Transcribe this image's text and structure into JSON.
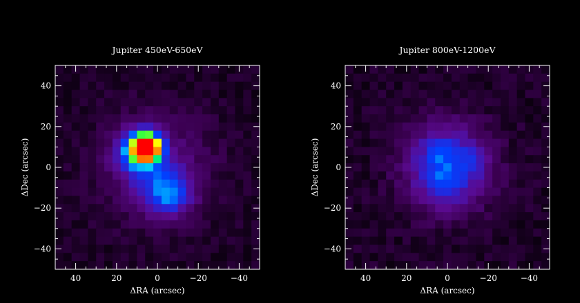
{
  "chart_data": [
    {
      "type": "heatmap",
      "title": "Jupiter 450eV-650eV",
      "xlabel": "ΔRA (arcsec)",
      "ylabel": "ΔDec (arcsec)",
      "xlim": [
        50,
        -50
      ],
      "ylim": [
        -50,
        50
      ],
      "xticks": [
        40,
        20,
        0,
        -20,
        -40
      ],
      "yticks": [
        40,
        20,
        0,
        -20,
        -40
      ],
      "xtick_labels": [
        "40",
        "20",
        "0",
        "−20",
        "−40"
      ],
      "ytick_labels": [
        "40",
        "20",
        "0",
        "−20",
        "−40"
      ],
      "pixel_size_arcsec": 4,
      "colormap": [
        "#000000",
        "#3a0050",
        "#5a0a90",
        "#3020d0",
        "#0040ff",
        "#00c8ff",
        "#00ff50",
        "#ffff00",
        "#ff8000",
        "#ff0000"
      ],
      "grid": false,
      "sources": [
        {
          "ra": 5,
          "dec": 10,
          "sigma": 4.5,
          "amp": 0.95
        },
        {
          "ra": 10,
          "dec": 8,
          "sigma": 7,
          "amp": 0.45
        },
        {
          "ra": -6,
          "dec": -14,
          "sigma": 7,
          "amp": 0.28
        },
        {
          "ra": 0,
          "dec": -5,
          "sigma": 10,
          "amp": 0.18
        },
        {
          "ra": 0,
          "dec": 0,
          "sigma": 20,
          "amp": 0.12
        }
      ],
      "noise": 0.06
    },
    {
      "type": "heatmap",
      "title": "Jupiter 800eV-1200eV",
      "xlabel": "ΔRA (arcsec)",
      "ylabel": "ΔDec (arcsec)",
      "xlim": [
        50,
        -50
      ],
      "ylim": [
        -50,
        50
      ],
      "xticks": [
        40,
        20,
        0,
        -20,
        -40
      ],
      "yticks": [
        40,
        20,
        0,
        -20,
        -40
      ],
      "xtick_labels": [
        "40",
        "20",
        "0",
        "−20",
        "−40"
      ],
      "ytick_labels": [
        "40",
        "20",
        "0",
        "−20",
        "−40"
      ],
      "pixel_size_arcsec": 4,
      "colormap": [
        "#000000",
        "#3a0050",
        "#5a0a90",
        "#3020d0",
        "#0040ff",
        "#00c8ff",
        "#00ff50",
        "#ffff00",
        "#ff8000",
        "#ff0000"
      ],
      "grid": false,
      "sources": [
        {
          "ra": 0,
          "dec": 0,
          "sigma": 14,
          "amp": 0.36
        },
        {
          "ra": 4,
          "dec": 8,
          "sigma": 5,
          "amp": 0.1
        },
        {
          "ra": 2,
          "dec": -8,
          "sigma": 5,
          "amp": 0.1
        },
        {
          "ra": -12,
          "dec": 3,
          "sigma": 5,
          "amp": 0.08
        }
      ],
      "noise": 0.07
    }
  ]
}
